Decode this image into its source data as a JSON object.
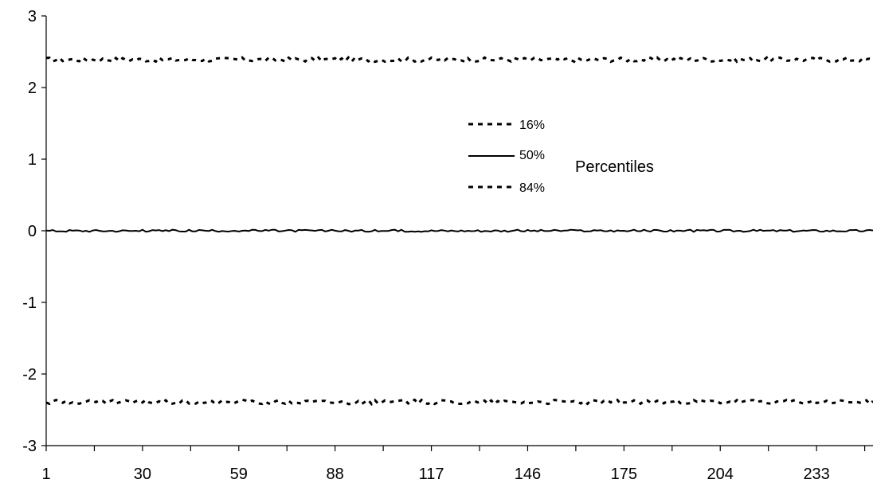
{
  "chart_data": {
    "type": "line",
    "title": "",
    "xlabel": "",
    "ylabel": "",
    "xlim": [
      1,
      250
    ],
    "ylim": [
      -3,
      3
    ],
    "x_ticks": [
      1,
      30,
      59,
      88,
      117,
      146,
      175,
      204,
      233
    ],
    "y_ticks": [
      3,
      2,
      1,
      0,
      -1,
      -2,
      -3
    ],
    "grid": false,
    "legend": {
      "title": "Percentiles",
      "placement": "center-right",
      "entries": [
        "16%",
        "50%",
        "84%"
      ]
    },
    "series": [
      {
        "name": "16%",
        "style": "dashed",
        "color": "#000000",
        "level": 2.39,
        "jitter": 0.03
      },
      {
        "name": "50%",
        "style": "solid",
        "color": "#000000",
        "level": 0.0,
        "jitter": 0.015
      },
      {
        "name": "84%",
        "style": "dashed",
        "color": "#000000",
        "level": -2.39,
        "jitter": 0.03
      }
    ],
    "series_note": "Each series fluctuates closely around its level across x = 1..250."
  }
}
